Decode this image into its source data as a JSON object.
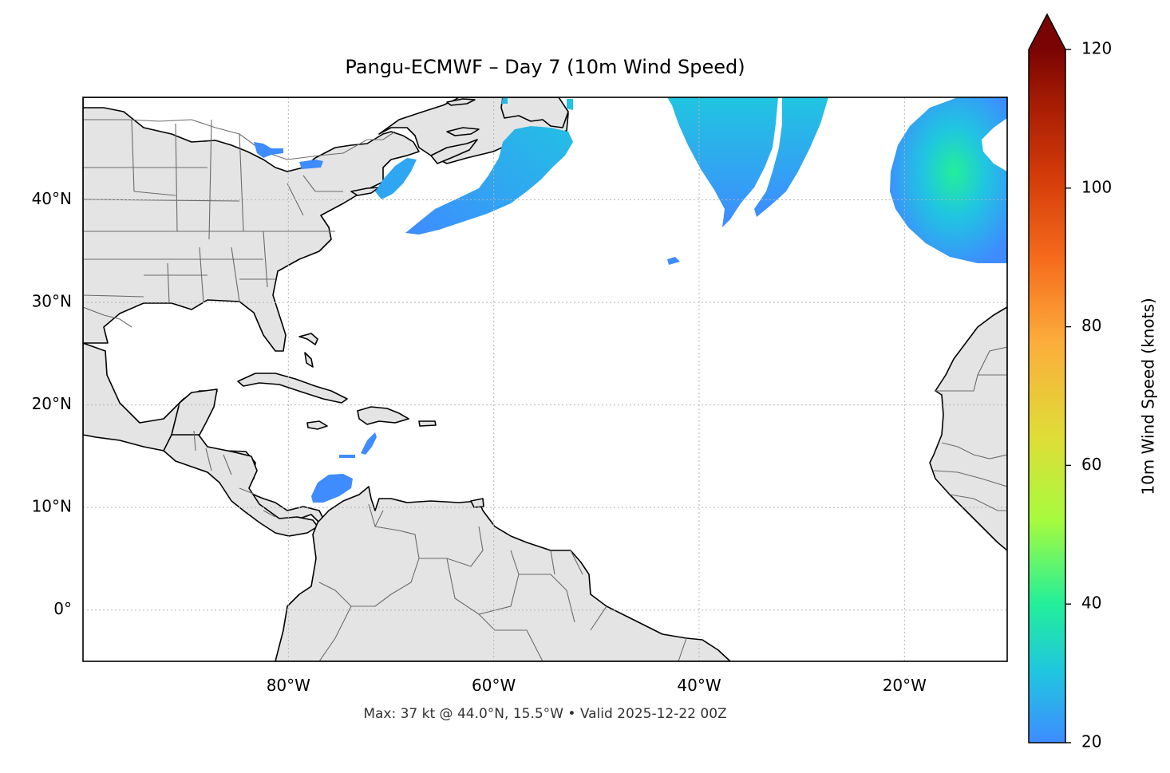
{
  "title": "Pangu-ECMWF – Day 7 (10m Wind Speed)",
  "footer": "Max: 37 kt @ 44.0°N, 15.5°W • Valid 2025-12-22 00Z",
  "map": {
    "extent": {
      "lon_min": -100,
      "lon_max": -10,
      "lat_min": -5,
      "lat_max": 50
    },
    "x_ticks": [
      {
        "lon": -80,
        "label": "80°W"
      },
      {
        "lon": -60,
        "label": "60°W"
      },
      {
        "lon": -40,
        "label": "40°W"
      },
      {
        "lon": -20,
        "label": "20°W"
      }
    ],
    "y_ticks": [
      {
        "lat": 40,
        "label": "40°N"
      },
      {
        "lat": 30,
        "label": "30°N"
      },
      {
        "lat": 20,
        "label": "20°N"
      },
      {
        "lat": 10,
        "label": "10°N"
      },
      {
        "lat": 0,
        "label": "0°"
      }
    ],
    "colors": {
      "land": "#e4e4e4",
      "coast": "#000000",
      "borders": "#6b6b6b",
      "gridlines": "#b5b5b5"
    }
  },
  "colorbar": {
    "label": "10m Wind Speed (knots)",
    "min": 20,
    "max": 120,
    "ticks": [
      {
        "value": 120,
        "label": "120"
      },
      {
        "value": 100,
        "label": "100"
      },
      {
        "value": 80,
        "label": "80"
      },
      {
        "value": 60,
        "label": "60"
      },
      {
        "value": 40,
        "label": "40"
      },
      {
        "value": 20,
        "label": "20"
      }
    ],
    "extend": "max",
    "colors": [
      {
        "value": 20,
        "color": "#3e8cff"
      },
      {
        "value": 30,
        "color": "#20c5e1"
      },
      {
        "value": 40,
        "color": "#22ef9a"
      },
      {
        "value": 52,
        "color": "#a6fb3e"
      },
      {
        "value": 64,
        "color": "#dfdd37"
      },
      {
        "value": 78,
        "color": "#fcac3b"
      },
      {
        "value": 90,
        "color": "#f56a1c"
      },
      {
        "value": 102,
        "color": "#d23a09"
      },
      {
        "value": 113,
        "color": "#a21a03"
      },
      {
        "value": 120,
        "color": "#7a0403"
      }
    ],
    "extend_color": "#7a0403"
  },
  "wind_areas": [
    {
      "name": "gulf-of-maine-swath",
      "speed_kt": 25
    },
    {
      "name": "newfoundland-swath",
      "speed_kt": 27
    },
    {
      "name": "central-atlantic-band-west",
      "speed_kt": 27
    },
    {
      "name": "central-atlantic-band-east",
      "speed_kt": 25
    },
    {
      "name": "eastern-atlantic-low",
      "speed_kt": 37
    },
    {
      "name": "caribbean-jet",
      "speed_kt": 22
    },
    {
      "name": "great-lakes-patch",
      "speed_kt": 21
    }
  ],
  "chart_data": {
    "type": "heatmap",
    "title": "Pangu-ECMWF – Day 7 (10m Wind Speed)",
    "variable": "10m Wind Speed (knots)",
    "xlim": [
      -100,
      -10
    ],
    "ylim": [
      -5,
      50
    ],
    "max": {
      "value": 37,
      "unit": "kt",
      "lat": 44.0,
      "lon": -15.5
    },
    "valid": "2025-12-22 00Z",
    "color_range": [
      20,
      120
    ]
  }
}
